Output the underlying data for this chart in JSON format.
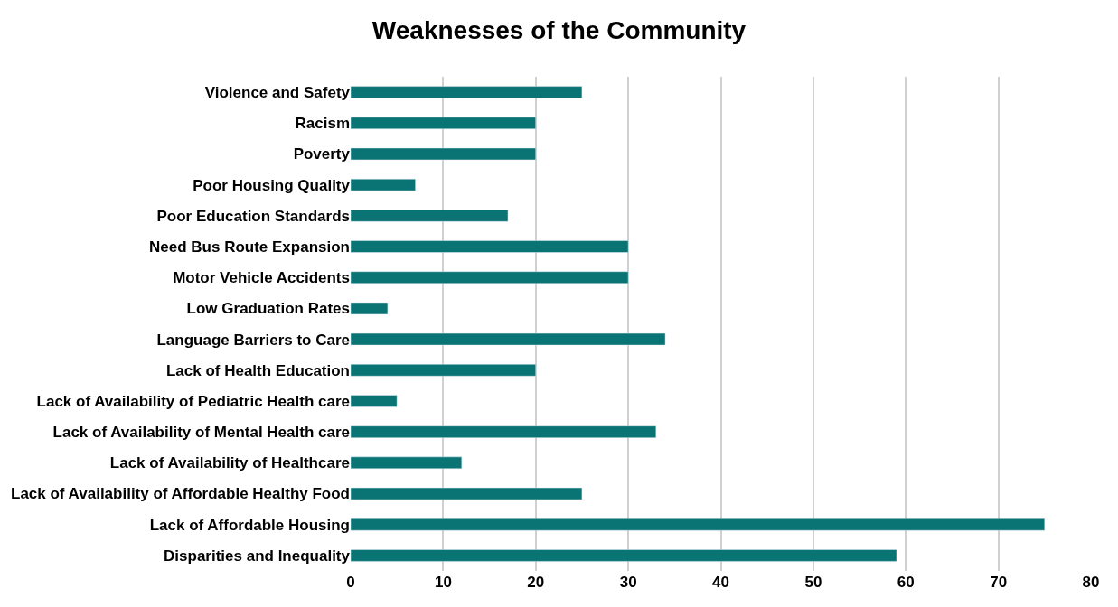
{
  "chart_data": {
    "type": "bar",
    "orientation": "horizontal",
    "title": "Weaknesses of the Community",
    "categories": [
      "Violence and Safety",
      "Racism",
      "Poverty",
      "Poor Housing Quality",
      "Poor Education Standards",
      "Need Bus Route Expansion",
      "Motor Vehicle Accidents",
      "Low Graduation Rates",
      "Language Barriers to Care",
      "Lack of Health Education",
      "Lack of Availability of Pediatric Health care",
      "Lack of Availability of Mental Health care",
      "Lack of Availability of Healthcare",
      "Lack of Availability of Affordable Healthy Food",
      "Lack of Affordable Housing",
      "Disparities and Inequality"
    ],
    "values": [
      25,
      20,
      20,
      7,
      17,
      30,
      30,
      4,
      34,
      20,
      5,
      33,
      12,
      25,
      75,
      59
    ],
    "color": "#0a7373",
    "xlim": [
      0,
      80
    ],
    "xticks": [
      0,
      10,
      20,
      30,
      40,
      50,
      60,
      70,
      80
    ],
    "grid": "x"
  }
}
